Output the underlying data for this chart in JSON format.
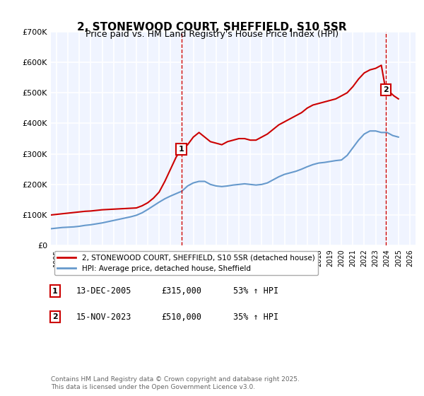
{
  "title": "2, STONEWOOD COURT, SHEFFIELD, S10 5SR",
  "subtitle": "Price paid vs. HM Land Registry's House Price Index (HPI)",
  "xlabel": "",
  "ylabel": "",
  "ylim": [
    0,
    700000
  ],
  "yticks": [
    0,
    100000,
    200000,
    300000,
    400000,
    500000,
    600000,
    700000
  ],
  "ytick_labels": [
    "£0",
    "£100K",
    "£200K",
    "£300K",
    "£400K",
    "£500K",
    "£600K",
    "£700K"
  ],
  "xlim_start": 1994.5,
  "xlim_end": 2026.5,
  "xtick_years": [
    1995,
    1996,
    1997,
    1998,
    1999,
    2000,
    2001,
    2002,
    2003,
    2004,
    2005,
    2006,
    2007,
    2008,
    2009,
    2010,
    2011,
    2012,
    2013,
    2014,
    2015,
    2016,
    2017,
    2018,
    2019,
    2020,
    2021,
    2022,
    2023,
    2024,
    2025,
    2026
  ],
  "red_color": "#cc0000",
  "blue_color": "#6699cc",
  "dashed_color": "#cc0000",
  "background_color": "#f0f4ff",
  "plot_bg": "#f0f4ff",
  "grid_color": "#ffffff",
  "title_fontsize": 11,
  "subtitle_fontsize": 9,
  "legend_label_red": "2, STONEWOOD COURT, SHEFFIELD, S10 5SR (detached house)",
  "legend_label_blue": "HPI: Average price, detached house, Sheffield",
  "marker1_x": 2005.95,
  "marker1_y": 315000,
  "marker1_label": "1",
  "marker2_x": 2023.88,
  "marker2_y": 510000,
  "marker2_label": "2",
  "table_rows": [
    {
      "label": "1",
      "date": "13-DEC-2005",
      "price": "£315,000",
      "hpi": "53% ↑ HPI"
    },
    {
      "label": "2",
      "date": "15-NOV-2023",
      "price": "£510,000",
      "hpi": "35% ↑ HPI"
    }
  ],
  "footer": "Contains HM Land Registry data © Crown copyright and database right 2025.\nThis data is licensed under the Open Government Licence v3.0.",
  "red_x": [
    1994.5,
    1995.0,
    1995.5,
    1996.0,
    1996.5,
    1997.0,
    1997.5,
    1998.0,
    1998.5,
    1999.0,
    1999.5,
    2000.0,
    2000.5,
    2001.0,
    2001.5,
    2002.0,
    2002.5,
    2003.0,
    2003.5,
    2004.0,
    2004.5,
    2005.0,
    2005.5,
    2005.95,
    2006.2,
    2006.5,
    2007.0,
    2007.5,
    2008.0,
    2008.5,
    2009.0,
    2009.5,
    2010.0,
    2010.5,
    2011.0,
    2011.5,
    2012.0,
    2012.5,
    2013.0,
    2013.5,
    2014.0,
    2014.5,
    2015.0,
    2015.5,
    2016.0,
    2016.5,
    2017.0,
    2017.5,
    2018.0,
    2018.5,
    2019.0,
    2019.5,
    2020.0,
    2020.5,
    2021.0,
    2021.5,
    2022.0,
    2022.5,
    2023.0,
    2023.5,
    2023.88,
    2024.0,
    2024.3,
    2024.6,
    2025.0
  ],
  "red_y": [
    100000,
    102000,
    104000,
    106000,
    108000,
    110000,
    112000,
    113000,
    115000,
    117000,
    118000,
    119000,
    120000,
    121000,
    122000,
    123000,
    130000,
    140000,
    155000,
    175000,
    210000,
    250000,
    290000,
    315000,
    320000,
    330000,
    355000,
    370000,
    355000,
    340000,
    335000,
    330000,
    340000,
    345000,
    350000,
    350000,
    345000,
    345000,
    355000,
    365000,
    380000,
    395000,
    405000,
    415000,
    425000,
    435000,
    450000,
    460000,
    465000,
    470000,
    475000,
    480000,
    490000,
    500000,
    520000,
    545000,
    565000,
    575000,
    580000,
    590000,
    510000,
    505000,
    500000,
    490000,
    480000
  ],
  "blue_x": [
    1994.5,
    1995.0,
    1995.5,
    1996.0,
    1996.5,
    1997.0,
    1997.5,
    1998.0,
    1998.5,
    1999.0,
    1999.5,
    2000.0,
    2000.5,
    2001.0,
    2001.5,
    2002.0,
    2002.5,
    2003.0,
    2003.5,
    2004.0,
    2004.5,
    2005.0,
    2005.5,
    2006.0,
    2006.5,
    2007.0,
    2007.5,
    2008.0,
    2008.5,
    2009.0,
    2009.5,
    2010.0,
    2010.5,
    2011.0,
    2011.5,
    2012.0,
    2012.5,
    2013.0,
    2013.5,
    2014.0,
    2014.5,
    2015.0,
    2015.5,
    2016.0,
    2016.5,
    2017.0,
    2017.5,
    2018.0,
    2018.5,
    2019.0,
    2019.5,
    2020.0,
    2020.5,
    2021.0,
    2021.5,
    2022.0,
    2022.5,
    2023.0,
    2023.5,
    2024.0,
    2024.5,
    2025.0
  ],
  "blue_y": [
    55000,
    57000,
    59000,
    60000,
    61000,
    63000,
    66000,
    68000,
    71000,
    74000,
    78000,
    82000,
    86000,
    90000,
    94000,
    99000,
    107000,
    118000,
    130000,
    142000,
    153000,
    162000,
    170000,
    178000,
    195000,
    205000,
    210000,
    210000,
    200000,
    195000,
    193000,
    195000,
    198000,
    200000,
    202000,
    200000,
    198000,
    200000,
    205000,
    215000,
    225000,
    233000,
    238000,
    243000,
    250000,
    258000,
    265000,
    270000,
    272000,
    275000,
    278000,
    280000,
    295000,
    320000,
    345000,
    365000,
    375000,
    375000,
    370000,
    370000,
    360000,
    355000
  ]
}
